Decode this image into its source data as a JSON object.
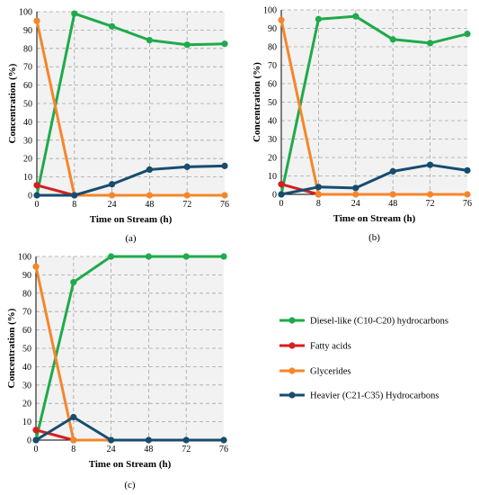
{
  "colors": {
    "diesel": "#1faa4b",
    "fatty": "#d42020",
    "glycerides": "#f5862b",
    "heavier": "#174c6e",
    "plot_bg": "#f2f2f2",
    "grid": "#a6a6a6"
  },
  "legend": [
    {
      "key": "diesel",
      "label": "Diesel-like (C10-C20) hydrocarbons"
    },
    {
      "key": "fatty",
      "label": "Fatty acids"
    },
    {
      "key": "glycerides",
      "label": "Glycerides"
    },
    {
      "key": "heavier",
      "label": "Heavier (C21-C35) Hydrocarbons"
    }
  ],
  "chart_data": [
    {
      "type": "line",
      "panel_label": "(a)",
      "xlabel": "Time on Stream (h)",
      "ylabel": "Concentration (%)",
      "categories": [
        "0",
        "8",
        "24",
        "48",
        "72",
        "76"
      ],
      "ylim": [
        0,
        100
      ],
      "yticks": [
        0,
        10,
        20,
        30,
        40,
        50,
        60,
        70,
        80,
        90,
        100
      ],
      "grid": true,
      "series": [
        {
          "key": "diesel",
          "values": [
            0,
            99,
            92,
            84.5,
            82,
            82.5
          ]
        },
        {
          "key": "fatty",
          "values": [
            5.5,
            0,
            null,
            null,
            null,
            null
          ]
        },
        {
          "key": "glycerides",
          "values": [
            95,
            0,
            0,
            0,
            0,
            0
          ]
        },
        {
          "key": "heavier",
          "values": [
            0,
            0,
            6,
            14,
            15.5,
            16
          ]
        }
      ]
    },
    {
      "type": "line",
      "panel_label": "(b)",
      "xlabel": "Time on Stream (h)",
      "ylabel": "Concentration (%)",
      "categories": [
        "0",
        "8",
        "24",
        "48",
        "72",
        "76"
      ],
      "ylim": [
        0,
        100
      ],
      "yticks": [
        0,
        10,
        20,
        30,
        40,
        50,
        60,
        70,
        80,
        90,
        100
      ],
      "grid": true,
      "series": [
        {
          "key": "diesel",
          "values": [
            0,
            95,
            96.5,
            84,
            82,
            87
          ]
        },
        {
          "key": "fatty",
          "values": [
            5.5,
            0,
            null,
            null,
            null,
            null
          ]
        },
        {
          "key": "glycerides",
          "values": [
            94.5,
            0,
            0,
            0,
            0,
            0
          ]
        },
        {
          "key": "heavier",
          "values": [
            0,
            4,
            3.5,
            12.5,
            16,
            13
          ]
        }
      ]
    },
    {
      "type": "line",
      "panel_label": "(c)",
      "xlabel": "Time on Stream (h)",
      "ylabel": "Concentration (%)",
      "categories": [
        "0",
        "8",
        "24",
        "48",
        "72",
        "76"
      ],
      "ylim": [
        0,
        100
      ],
      "yticks": [
        0,
        10,
        20,
        30,
        40,
        50,
        60,
        70,
        80,
        90,
        100
      ],
      "grid": true,
      "series": [
        {
          "key": "diesel",
          "values": [
            0,
            86,
            100,
            100,
            100,
            100
          ]
        },
        {
          "key": "fatty",
          "values": [
            5.5,
            0,
            null,
            null,
            null,
            null
          ]
        },
        {
          "key": "glycerides",
          "values": [
            94.5,
            0,
            0,
            0,
            0,
            0
          ]
        },
        {
          "key": "heavier",
          "values": [
            0,
            12.5,
            0,
            0,
            0,
            0
          ]
        }
      ]
    }
  ]
}
